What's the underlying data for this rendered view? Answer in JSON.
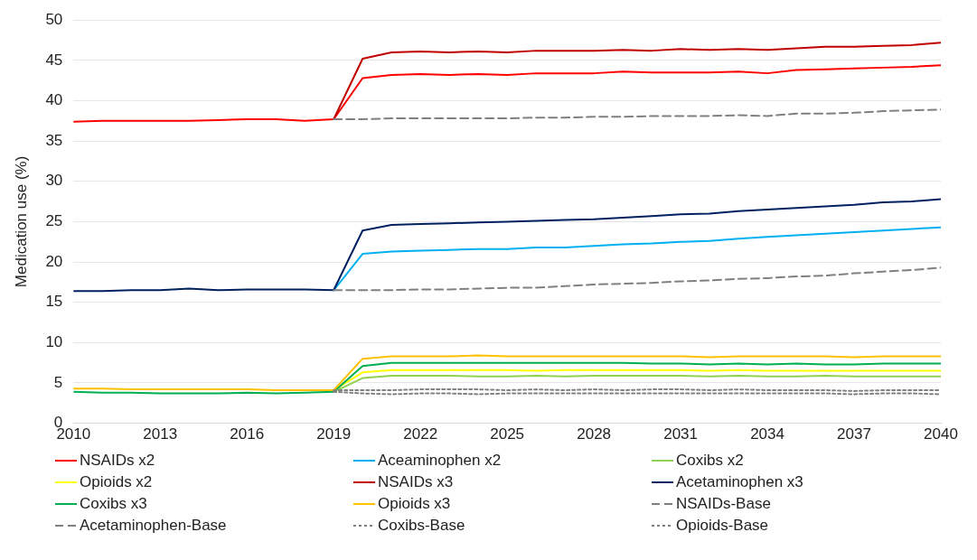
{
  "chart_data": {
    "type": "line",
    "ylabel": "Medication use (%)",
    "x": [
      2010,
      2011,
      2012,
      2013,
      2014,
      2015,
      2016,
      2017,
      2018,
      2019,
      2020,
      2021,
      2022,
      2023,
      2024,
      2025,
      2026,
      2027,
      2028,
      2029,
      2030,
      2031,
      2032,
      2033,
      2034,
      2035,
      2036,
      2037,
      2038,
      2039,
      2040
    ],
    "xlim": [
      2010,
      2040
    ],
    "xticks": [
      2010,
      2013,
      2016,
      2019,
      2022,
      2025,
      2028,
      2031,
      2034,
      2037,
      2040
    ],
    "ylim": [
      0,
      50
    ],
    "yticks": [
      0,
      5,
      10,
      15,
      20,
      25,
      30,
      35,
      40,
      45,
      50
    ],
    "grid": "y",
    "legend": "bottom",
    "marker": "none",
    "series": [
      {
        "name": "NSAIDs x2",
        "color": "#ff0000",
        "line_style": "solid",
        "values": [
          37.4,
          37.5,
          37.5,
          37.5,
          37.5,
          37.6,
          37.7,
          37.7,
          37.5,
          37.7,
          42.8,
          43.2,
          43.3,
          43.2,
          43.3,
          43.2,
          43.4,
          43.4,
          43.4,
          43.6,
          43.5,
          43.5,
          43.5,
          43.6,
          43.4,
          43.8,
          43.9,
          44.0,
          44.1,
          44.2,
          44.4
        ]
      },
      {
        "name": "Aceaminophen x2",
        "color": "#00b0f0",
        "line_style": "solid",
        "values": [
          null,
          null,
          null,
          null,
          null,
          null,
          null,
          null,
          null,
          16.5,
          21.0,
          21.3,
          21.4,
          21.5,
          21.6,
          21.6,
          21.8,
          21.8,
          22.0,
          22.2,
          22.3,
          22.5,
          22.6,
          22.9,
          23.1,
          23.3,
          23.5,
          23.7,
          23.9,
          24.1,
          24.3
        ]
      },
      {
        "name": "Coxibs x2",
        "color": "#92d050",
        "line_style": "solid",
        "values": [
          null,
          null,
          null,
          null,
          null,
          null,
          null,
          null,
          null,
          3.9,
          5.6,
          5.9,
          5.9,
          5.9,
          5.8,
          5.8,
          5.9,
          5.8,
          5.9,
          5.9,
          5.9,
          5.9,
          5.8,
          5.9,
          5.8,
          5.8,
          5.9,
          5.8,
          5.8,
          5.8,
          5.8
        ]
      },
      {
        "name": "Opioids x2",
        "color": "#ffff00",
        "line_style": "solid",
        "values": [
          null,
          null,
          null,
          null,
          null,
          null,
          null,
          null,
          null,
          4.1,
          6.3,
          6.6,
          6.6,
          6.6,
          6.6,
          6.6,
          6.5,
          6.6,
          6.6,
          6.6,
          6.6,
          6.6,
          6.5,
          6.6,
          6.5,
          6.5,
          6.5,
          6.5,
          6.5,
          6.5,
          6.5
        ]
      },
      {
        "name": "NSAIDs x3",
        "color": "#c00000",
        "line_style": "solid",
        "values": [
          null,
          null,
          null,
          null,
          null,
          null,
          null,
          null,
          null,
          37.7,
          45.2,
          46.0,
          46.1,
          46.0,
          46.1,
          46.0,
          46.2,
          46.2,
          46.2,
          46.3,
          46.2,
          46.4,
          46.3,
          46.4,
          46.3,
          46.5,
          46.7,
          46.7,
          46.8,
          46.9,
          47.2
        ]
      },
      {
        "name": "Acetaminophen x3",
        "color": "#002060",
        "line_style": "solid",
        "values": [
          16.4,
          16.4,
          16.5,
          16.5,
          16.7,
          16.5,
          16.6,
          16.6,
          16.6,
          16.5,
          23.9,
          24.6,
          24.7,
          24.8,
          24.9,
          25.0,
          25.1,
          25.2,
          25.3,
          25.5,
          25.7,
          25.9,
          26.0,
          26.3,
          26.5,
          26.7,
          26.9,
          27.1,
          27.4,
          27.5,
          27.8
        ]
      },
      {
        "name": "Coxibs x3",
        "color": "#00b050",
        "line_style": "solid",
        "values": [
          3.9,
          3.8,
          3.8,
          3.7,
          3.7,
          3.7,
          3.8,
          3.7,
          3.8,
          3.9,
          7.1,
          7.5,
          7.5,
          7.5,
          7.5,
          7.5,
          7.5,
          7.5,
          7.5,
          7.5,
          7.4,
          7.4,
          7.3,
          7.4,
          7.3,
          7.4,
          7.3,
          7.3,
          7.4,
          7.4,
          7.4
        ]
      },
      {
        "name": "Opioids x3",
        "color": "#ffc000",
        "line_style": "solid",
        "values": [
          4.3,
          4.3,
          4.2,
          4.2,
          4.2,
          4.2,
          4.2,
          4.1,
          4.1,
          4.1,
          8.0,
          8.3,
          8.3,
          8.3,
          8.4,
          8.3,
          8.3,
          8.3,
          8.3,
          8.3,
          8.3,
          8.3,
          8.2,
          8.3,
          8.3,
          8.3,
          8.3,
          8.2,
          8.3,
          8.3,
          8.3
        ]
      },
      {
        "name": "NSAIDs-Base",
        "color": "#808080",
        "line_style": "dashed",
        "values": [
          null,
          null,
          null,
          null,
          null,
          null,
          null,
          null,
          null,
          37.7,
          37.7,
          37.8,
          37.8,
          37.8,
          37.8,
          37.8,
          37.9,
          37.9,
          38.0,
          38.0,
          38.1,
          38.1,
          38.1,
          38.2,
          38.1,
          38.4,
          38.4,
          38.5,
          38.7,
          38.8,
          38.9
        ]
      },
      {
        "name": "Acetaminophen-Base",
        "color": "#808080",
        "line_style": "dashed",
        "values": [
          null,
          null,
          null,
          null,
          null,
          null,
          null,
          null,
          null,
          16.5,
          16.5,
          16.5,
          16.6,
          16.6,
          16.7,
          16.8,
          16.8,
          17.0,
          17.2,
          17.3,
          17.4,
          17.6,
          17.7,
          17.9,
          18.0,
          18.2,
          18.3,
          18.6,
          18.8,
          19.0,
          19.3
        ]
      },
      {
        "name": "Coxibs-Base",
        "color": "#808080",
        "line_style": "dotted",
        "values": [
          null,
          null,
          null,
          null,
          null,
          null,
          null,
          null,
          null,
          3.9,
          3.7,
          3.6,
          3.7,
          3.7,
          3.6,
          3.7,
          3.7,
          3.7,
          3.7,
          3.7,
          3.7,
          3.7,
          3.7,
          3.7,
          3.7,
          3.7,
          3.7,
          3.6,
          3.7,
          3.7,
          3.6
        ]
      },
      {
        "name": "Opioids-Base",
        "color": "#808080",
        "line_style": "dotted",
        "values": [
          null,
          null,
          null,
          null,
          null,
          null,
          null,
          null,
          null,
          4.1,
          4.1,
          4.1,
          4.2,
          4.2,
          4.2,
          4.1,
          4.2,
          4.1,
          4.2,
          4.1,
          4.2,
          4.2,
          4.1,
          4.2,
          4.1,
          4.1,
          4.1,
          4.0,
          4.1,
          4.1,
          4.1
        ]
      }
    ]
  }
}
